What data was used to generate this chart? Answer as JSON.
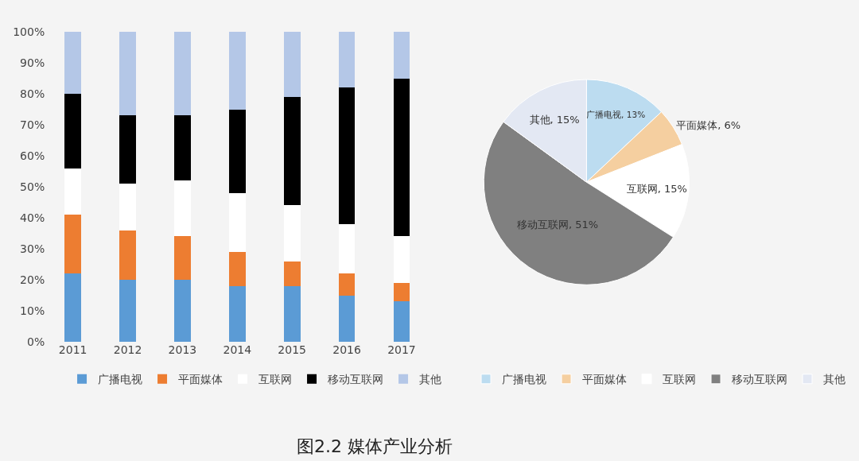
{
  "chart_data": [
    {
      "type": "bar",
      "stacked": true,
      "categories": [
        "2011",
        "2012",
        "2013",
        "2014",
        "2015",
        "2016",
        "2017"
      ],
      "series": [
        {
          "name": "广播电视",
          "color": "#5b9bd5",
          "values": [
            22,
            20,
            20,
            18,
            18,
            15,
            13
          ]
        },
        {
          "name": "平面媒体",
          "color": "#ed7d31",
          "values": [
            19,
            16,
            14,
            11,
            8,
            7,
            6
          ]
        },
        {
          "name": "互联网",
          "color": "#ffffff",
          "values": [
            15,
            15,
            18,
            19,
            18,
            16,
            15
          ]
        },
        {
          "name": "移动互联网",
          "color": "#000000",
          "values": [
            24,
            22,
            21,
            27,
            35,
            44,
            51
          ]
        },
        {
          "name": "其他",
          "color": "#b4c7e7",
          "values": [
            20,
            27,
            27,
            25,
            21,
            18,
            15
          ]
        }
      ],
      "ylim": [
        0,
        100
      ],
      "yticks": [
        {
          "value": 0,
          "label": "0%"
        },
        {
          "value": 10,
          "label": "10%"
        },
        {
          "value": 20,
          "label": "20%"
        },
        {
          "value": 30,
          "label": "30%"
        },
        {
          "value": 40,
          "label": "40%"
        },
        {
          "value": 50,
          "label": "50%"
        },
        {
          "value": 60,
          "label": "60%"
        },
        {
          "value": 70,
          "label": "70%"
        },
        {
          "value": 80,
          "label": "80%"
        },
        {
          "value": 90,
          "label": "90%"
        },
        {
          "value": 100,
          "label": "100%"
        }
      ],
      "grid": false,
      "legend": "bottom",
      "annotations": [
        "图2.2 媒体产业分析"
      ]
    },
    {
      "type": "pie",
      "categories": [
        "广播电视",
        "平面媒体",
        "互联网",
        "移动互联网",
        "其他"
      ],
      "values": [
        13,
        6,
        15,
        51,
        15
      ],
      "colors": [
        "#bcdcf0",
        "#f5cfa0",
        "#ffffff",
        "#808080",
        "#e3e8f3"
      ],
      "value_labels": [
        "广播电视, 13%",
        "平面媒体, 6%",
        "互联网, 15%",
        "移动互联网, 51%",
        "其他, 15%"
      ],
      "legend": "bottom"
    }
  ]
}
